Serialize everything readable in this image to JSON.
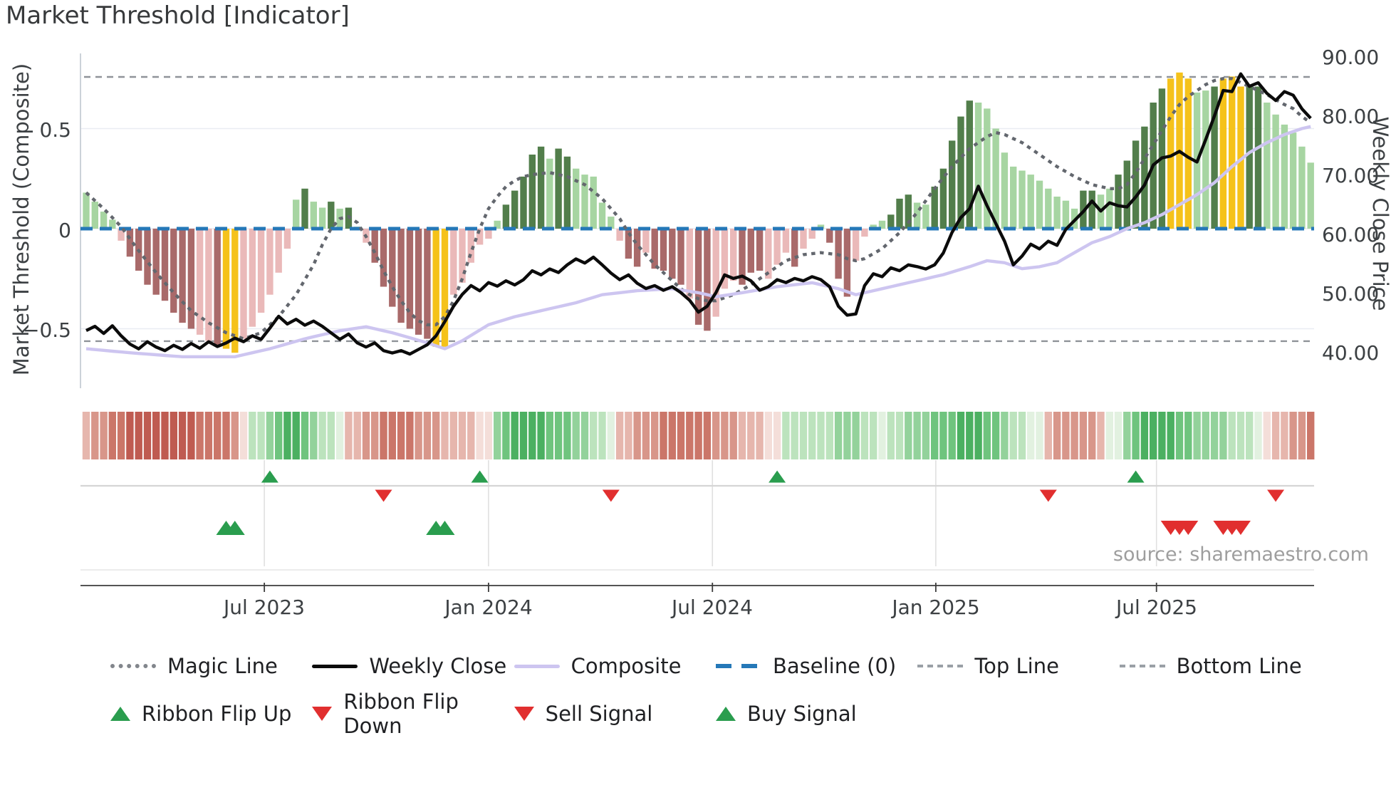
{
  "title": "Market Threshold [Indicator]",
  "source": "source: sharemaestro.com",
  "axes": {
    "left_label": "Market Threshold (Composite)",
    "right_label": "Weekly Close Price",
    "left_ticks": [
      "0.5",
      "0",
      "−0.5"
    ],
    "right_ticks": [
      "90.00",
      "80.00",
      "70.00",
      "60.00",
      "50.00",
      "40.00"
    ],
    "x_ticks": [
      "Jul 2023",
      "Jan 2024",
      "Jul 2024",
      "Jan 2025",
      "Jul 2025"
    ]
  },
  "colors": {
    "bar_light_green": "#a7d5a2",
    "bar_dark_green": "#527e4b",
    "bar_light_pink": "#eab9b9",
    "bar_mauve": "#a96a6a",
    "bar_gold": "#f5c21a",
    "baseline_blue": "#2578b8",
    "magic_gray": "#63676e",
    "composite_lavender": "#cdc5f0",
    "weekly_close_black": "#0b0b0b",
    "threshold_dash_gray": "#8f9399",
    "signal_green": "#2a9d4e",
    "signal_red": "#e12f2f",
    "ribbon_palette": {
      "r4": "#bf5b51",
      "r3": "#cb7669",
      "r2": "#d8968a",
      "r1": "#e6b6ad",
      "p0": "#f4ded9",
      "g0": "#e2f1e0",
      "g1": "#bce3bd",
      "g2": "#93d29b",
      "g3": "#6fc47e",
      "g4": "#4bb061"
    }
  },
  "chart_data": {
    "type": "combo",
    "x_unit": "week",
    "week_count": 141,
    "x_tick_weeks": [
      21.37,
      47.0,
      72.6,
      98.14,
      123.37
    ],
    "left_axis_range": [
      -0.8,
      0.875
    ],
    "right_axis_range": [
      33.7,
      90.4
    ],
    "grid_values_left": [
      0.5,
      0,
      -0.5
    ],
    "baseline": 0,
    "top_line": 0.758,
    "bottom_line": -0.562,
    "threshold_bars": [
      [
        0.18,
        "lg"
      ],
      [
        0.135,
        "lg"
      ],
      [
        0.085,
        "lg"
      ],
      [
        0.045,
        "lg"
      ],
      [
        -0.06,
        "lp"
      ],
      [
        -0.14,
        "dr"
      ],
      [
        -0.21,
        "dr"
      ],
      [
        -0.28,
        "dr"
      ],
      [
        -0.33,
        "dr"
      ],
      [
        -0.36,
        "dr"
      ],
      [
        -0.42,
        "dr"
      ],
      [
        -0.47,
        "dr"
      ],
      [
        -0.5,
        "dr"
      ],
      [
        -0.53,
        "lp"
      ],
      [
        -0.56,
        "lp"
      ],
      [
        -0.58,
        "dr"
      ],
      [
        -0.6,
        "gd"
      ],
      [
        -0.62,
        "gd"
      ],
      [
        -0.55,
        "lp"
      ],
      [
        -0.49,
        "lp"
      ],
      [
        -0.42,
        "lp"
      ],
      [
        -0.33,
        "lp"
      ],
      [
        -0.22,
        "lp"
      ],
      [
        -0.1,
        "lp"
      ],
      [
        0.145,
        "lg"
      ],
      [
        0.2,
        "dg"
      ],
      [
        0.135,
        "lg"
      ],
      [
        0.105,
        "lg"
      ],
      [
        0.135,
        "dg"
      ],
      [
        0.1,
        "lg"
      ],
      [
        0.105,
        "dg"
      ],
      [
        0.01,
        "lg"
      ],
      [
        -0.07,
        "lp"
      ],
      [
        -0.17,
        "dr"
      ],
      [
        -0.29,
        "dr"
      ],
      [
        -0.39,
        "dr"
      ],
      [
        -0.47,
        "dr"
      ],
      [
        -0.5,
        "dr"
      ],
      [
        -0.53,
        "dr"
      ],
      [
        -0.55,
        "dr"
      ],
      [
        -0.59,
        "gd"
      ],
      [
        -0.59,
        "gd"
      ],
      [
        -0.33,
        "lp"
      ],
      [
        -0.27,
        "lp"
      ],
      [
        -0.17,
        "lp"
      ],
      [
        -0.08,
        "lp"
      ],
      [
        -0.05,
        "lp"
      ],
      [
        0.04,
        "lg"
      ],
      [
        0.12,
        "dg"
      ],
      [
        0.19,
        "dg"
      ],
      [
        0.26,
        "dg"
      ],
      [
        0.37,
        "dg"
      ],
      [
        0.41,
        "dg"
      ],
      [
        0.35,
        "lg"
      ],
      [
        0.4,
        "dg"
      ],
      [
        0.36,
        "dg"
      ],
      [
        0.3,
        "lg"
      ],
      [
        0.27,
        "lg"
      ],
      [
        0.26,
        "lg"
      ],
      [
        0.13,
        "lg"
      ],
      [
        0.06,
        "lg"
      ],
      [
        -0.06,
        "lp"
      ],
      [
        -0.15,
        "dr"
      ],
      [
        -0.19,
        "dr"
      ],
      [
        -0.12,
        "lp"
      ],
      [
        -0.2,
        "dr"
      ],
      [
        -0.21,
        "dr"
      ],
      [
        -0.25,
        "dr"
      ],
      [
        -0.28,
        "dr"
      ],
      [
        -0.35,
        "lp"
      ],
      [
        -0.48,
        "dr"
      ],
      [
        -0.51,
        "dr"
      ],
      [
        -0.44,
        "lp"
      ],
      [
        -0.3,
        "lp"
      ],
      [
        -0.26,
        "lp"
      ],
      [
        -0.28,
        "dr"
      ],
      [
        -0.22,
        "dr"
      ],
      [
        -0.21,
        "dr"
      ],
      [
        -0.25,
        "lp"
      ],
      [
        -0.18,
        "lp"
      ],
      [
        -0.12,
        "lp"
      ],
      [
        -0.19,
        "dr"
      ],
      [
        -0.1,
        "lp"
      ],
      [
        -0.05,
        "lp"
      ],
      [
        0.02,
        "lg"
      ],
      [
        -0.07,
        "dr"
      ],
      [
        -0.25,
        "dr"
      ],
      [
        -0.34,
        "dr"
      ],
      [
        -0.16,
        "lp"
      ],
      [
        -0.04,
        "lp"
      ],
      [
        0.02,
        "lg"
      ],
      [
        0.04,
        "lg"
      ],
      [
        0.07,
        "dg"
      ],
      [
        0.15,
        "dg"
      ],
      [
        0.17,
        "dg"
      ],
      [
        0.13,
        "lg"
      ],
      [
        0.12,
        "lg"
      ],
      [
        0.21,
        "dg"
      ],
      [
        0.3,
        "dg"
      ],
      [
        0.44,
        "dg"
      ],
      [
        0.56,
        "dg"
      ],
      [
        0.64,
        "dg"
      ],
      [
        0.63,
        "lg"
      ],
      [
        0.6,
        "lg"
      ],
      [
        0.5,
        "lg"
      ],
      [
        0.38,
        "lg"
      ],
      [
        0.31,
        "lg"
      ],
      [
        0.29,
        "lg"
      ],
      [
        0.27,
        "lg"
      ],
      [
        0.24,
        "lg"
      ],
      [
        0.2,
        "lg"
      ],
      [
        0.16,
        "lg"
      ],
      [
        0.14,
        "lg"
      ],
      [
        0.1,
        "lg"
      ],
      [
        0.19,
        "dg"
      ],
      [
        0.19,
        "dg"
      ],
      [
        0.17,
        "lg"
      ],
      [
        0.2,
        "lg"
      ],
      [
        0.27,
        "dg"
      ],
      [
        0.34,
        "dg"
      ],
      [
        0.44,
        "dg"
      ],
      [
        0.51,
        "dg"
      ],
      [
        0.63,
        "dg"
      ],
      [
        0.7,
        "dg"
      ],
      [
        0.75,
        "gd"
      ],
      [
        0.78,
        "gd"
      ],
      [
        0.75,
        "gd"
      ],
      [
        0.68,
        "lg"
      ],
      [
        0.69,
        "lg"
      ],
      [
        0.71,
        "dg"
      ],
      [
        0.75,
        "gd"
      ],
      [
        0.76,
        "gd"
      ],
      [
        0.71,
        "gd"
      ],
      [
        0.72,
        "dg"
      ],
      [
        0.71,
        "dg"
      ],
      [
        0.63,
        "lg"
      ],
      [
        0.57,
        "lg"
      ],
      [
        0.52,
        "lg"
      ],
      [
        0.48,
        "lg"
      ],
      [
        0.41,
        "lg"
      ],
      [
        0.33,
        "lg"
      ]
    ],
    "weekly_close": [
      43.5,
      44.2,
      43.0,
      44.3,
      42.6,
      41.2,
      40.4,
      41.6,
      40.7,
      40.1,
      41.0,
      40.3,
      41.3,
      40.5,
      41.6,
      40.8,
      41.4,
      42.2,
      41.6,
      42.6,
      42.0,
      43.9,
      45.9,
      44.6,
      45.4,
      44.4,
      45.1,
      44.2,
      43.1,
      42.0,
      42.9,
      41.4,
      40.7,
      41.4,
      40.1,
      39.7,
      40.1,
      39.5,
      40.3,
      41.1,
      42.6,
      45.0,
      47.6,
      49.6,
      51.1,
      50.2,
      51.6,
      51.0,
      51.9,
      51.2,
      52.1,
      53.6,
      52.9,
      53.9,
      53.3,
      54.6,
      55.6,
      54.9,
      55.9,
      54.6,
      53.2,
      52.1,
      52.9,
      51.5,
      50.6,
      51.1,
      50.3,
      50.9,
      49.9,
      48.6,
      46.6,
      47.6,
      49.9,
      52.9,
      52.3,
      52.7,
      51.9,
      50.3,
      50.9,
      52.1,
      51.6,
      52.3,
      51.9,
      52.6,
      52.1,
      50.9,
      47.6,
      46.1,
      46.3,
      51.1,
      53.1,
      52.6,
      54.1,
      53.6,
      54.6,
      54.3,
      53.9,
      54.6,
      56.6,
      60.1,
      62.6,
      64.1,
      67.9,
      64.6,
      61.6,
      58.6,
      54.6,
      56.1,
      58.1,
      57.3,
      58.6,
      57.9,
      60.6,
      62.1,
      63.6,
      65.4,
      63.7,
      65.1,
      64.6,
      64.4,
      66.1,
      68.1,
      71.5,
      72.7,
      73.0,
      73.8,
      72.8,
      72.0,
      75.8,
      79.8,
      84.1,
      83.9,
      86.9,
      84.8,
      85.4,
      83.6,
      82.4,
      83.9,
      83.3,
      81.0,
      79.4
    ],
    "magic_line": [
      [
        1,
        0.18
      ],
      [
        3,
        0.1
      ],
      [
        5,
        0.01
      ],
      [
        7,
        -0.11
      ],
      [
        9,
        -0.22
      ],
      [
        11,
        -0.32
      ],
      [
        13,
        -0.41
      ],
      [
        15,
        -0.47
      ],
      [
        17,
        -0.52
      ],
      [
        19,
        -0.55
      ],
      [
        21,
        -0.52
      ],
      [
        23,
        -0.44
      ],
      [
        25,
        -0.33
      ],
      [
        27,
        -0.18
      ],
      [
        28,
        -0.08
      ],
      [
        29,
        0.0
      ],
      [
        30,
        0.05
      ],
      [
        31,
        0.06
      ],
      [
        32,
        0.03
      ],
      [
        33,
        -0.04
      ],
      [
        34,
        -0.12
      ],
      [
        35,
        -0.21
      ],
      [
        36,
        -0.29
      ],
      [
        37,
        -0.36
      ],
      [
        38,
        -0.42
      ],
      [
        39,
        -0.46
      ],
      [
        40,
        -0.48
      ],
      [
        41,
        -0.48
      ],
      [
        42,
        -0.44
      ],
      [
        43,
        -0.36
      ],
      [
        44,
        -0.25
      ],
      [
        45,
        -0.12
      ],
      [
        46,
        0.0
      ],
      [
        47,
        0.1
      ],
      [
        48,
        0.16
      ],
      [
        49,
        0.21
      ],
      [
        50,
        0.24
      ],
      [
        51,
        0.26
      ],
      [
        52,
        0.27
      ],
      [
        54,
        0.28
      ],
      [
        56,
        0.26
      ],
      [
        58,
        0.22
      ],
      [
        60,
        0.15
      ],
      [
        62,
        0.05
      ],
      [
        63,
        -0.02
      ],
      [
        64,
        -0.08
      ],
      [
        65,
        -0.13
      ],
      [
        66,
        -0.18
      ],
      [
        67,
        -0.22
      ],
      [
        68,
        -0.26
      ],
      [
        69,
        -0.3
      ],
      [
        70,
        -0.33
      ],
      [
        71,
        -0.35
      ],
      [
        72,
        -0.36
      ],
      [
        73,
        -0.36
      ],
      [
        75,
        -0.33
      ],
      [
        77,
        -0.28
      ],
      [
        79,
        -0.22
      ],
      [
        81,
        -0.16
      ],
      [
        83,
        -0.13
      ],
      [
        85,
        -0.12
      ],
      [
        87,
        -0.13
      ],
      [
        88,
        -0.15
      ],
      [
        89,
        -0.16
      ],
      [
        90,
        -0.15
      ],
      [
        92,
        -0.1
      ],
      [
        94,
        -0.02
      ],
      [
        96,
        0.08
      ],
      [
        98,
        0.2
      ],
      [
        100,
        0.31
      ],
      [
        102,
        0.4
      ],
      [
        104,
        0.46
      ],
      [
        105,
        0.48
      ],
      [
        106,
        0.47
      ],
      [
        108,
        0.43
      ],
      [
        110,
        0.37
      ],
      [
        112,
        0.31
      ],
      [
        114,
        0.26
      ],
      [
        116,
        0.22
      ],
      [
        118,
        0.2
      ],
      [
        119,
        0.2
      ],
      [
        120,
        0.22
      ],
      [
        121,
        0.28
      ],
      [
        122,
        0.35
      ],
      [
        123,
        0.42
      ],
      [
        124,
        0.49
      ],
      [
        125,
        0.56
      ],
      [
        126,
        0.62
      ],
      [
        127,
        0.66
      ],
      [
        128,
        0.69
      ],
      [
        129,
        0.72
      ],
      [
        130,
        0.74
      ],
      [
        131,
        0.75
      ],
      [
        132,
        0.75
      ],
      [
        133,
        0.73
      ],
      [
        134,
        0.71
      ],
      [
        136,
        0.67
      ],
      [
        138,
        0.62
      ],
      [
        139,
        0.6
      ],
      [
        140,
        0.56
      ],
      [
        141,
        0.53
      ]
    ],
    "composite": [
      [
        1,
        -0.6
      ],
      [
        6,
        -0.62
      ],
      [
        12,
        -0.64
      ],
      [
        18,
        -0.64
      ],
      [
        22,
        -0.6
      ],
      [
        26,
        -0.55
      ],
      [
        30,
        -0.51
      ],
      [
        33,
        -0.49
      ],
      [
        36,
        -0.52
      ],
      [
        40,
        -0.57
      ],
      [
        42,
        -0.6
      ],
      [
        44,
        -0.56
      ],
      [
        47,
        -0.48
      ],
      [
        50,
        -0.44
      ],
      [
        53,
        -0.41
      ],
      [
        57,
        -0.37
      ],
      [
        60,
        -0.33
      ],
      [
        64,
        -0.31
      ],
      [
        68,
        -0.3
      ],
      [
        71,
        -0.32
      ],
      [
        73,
        -0.34
      ],
      [
        76,
        -0.32
      ],
      [
        80,
        -0.29
      ],
      [
        84,
        -0.27
      ],
      [
        87,
        -0.3
      ],
      [
        89,
        -0.33
      ],
      [
        92,
        -0.3
      ],
      [
        96,
        -0.26
      ],
      [
        99,
        -0.23
      ],
      [
        102,
        -0.19
      ],
      [
        104,
        -0.16
      ],
      [
        106,
        -0.17
      ],
      [
        108,
        -0.2
      ],
      [
        110,
        -0.19
      ],
      [
        112,
        -0.17
      ],
      [
        114,
        -0.12
      ],
      [
        116,
        -0.07
      ],
      [
        118,
        -0.04
      ],
      [
        120,
        0.0
      ],
      [
        122,
        0.03
      ],
      [
        124,
        0.07
      ],
      [
        126,
        0.12
      ],
      [
        128,
        0.17
      ],
      [
        130,
        0.23
      ],
      [
        132,
        0.31
      ],
      [
        134,
        0.38
      ],
      [
        136,
        0.43
      ],
      [
        138,
        0.47
      ],
      [
        140,
        0.5
      ],
      [
        141,
        0.51
      ]
    ],
    "ribbon": [
      "r1",
      "r2",
      "r2",
      "r3",
      "r3",
      "r4",
      "r4",
      "r4",
      "r4",
      "r4",
      "r4",
      "r4",
      "r4",
      "r3",
      "r3",
      "r3",
      "r3",
      "r2",
      "p0",
      "g1",
      "g1",
      "g2",
      "g3",
      "g4",
      "g4",
      "g3",
      "g2",
      "g1",
      "g1",
      "g0",
      "r1",
      "r1",
      "r2",
      "r2",
      "r3",
      "r3",
      "r3",
      "r3",
      "r2",
      "r2",
      "r2",
      "r1",
      "r1",
      "r1",
      "r1",
      "p0",
      "p0",
      "g2",
      "g3",
      "g4",
      "g4",
      "g4",
      "g4",
      "g3",
      "g3",
      "g3",
      "g2",
      "g2",
      "g1",
      "g1",
      "g0",
      "r1",
      "r1",
      "r2",
      "r2",
      "r2",
      "r3",
      "r3",
      "r3",
      "r3",
      "r3",
      "r3",
      "r2",
      "r2",
      "r2",
      "r1",
      "r1",
      "r1",
      "p0",
      "p0",
      "g1",
      "g1",
      "g1",
      "g1",
      "g1",
      "g1",
      "g2",
      "g2",
      "g2",
      "g1",
      "g1",
      "g0",
      "g1",
      "g1",
      "g2",
      "g2",
      "g2",
      "g3",
      "g3",
      "g3",
      "g4",
      "g4",
      "g4",
      "g3",
      "g3",
      "g2",
      "g1",
      "g1",
      "g0",
      "g0",
      "r1",
      "r2",
      "r2",
      "r2",
      "r2",
      "r2",
      "r1",
      "g0",
      "g0",
      "g2",
      "g3",
      "g4",
      "g4",
      "g4",
      "g4",
      "g3",
      "g3",
      "g2",
      "g2",
      "g2",
      "g2",
      "g1",
      "g1",
      "g1",
      "g0",
      "p0",
      "r1",
      "r1",
      "r2",
      "r2",
      "r3"
    ],
    "signals": {
      "ribbon_flip_up_weeks": [
        22,
        46,
        80,
        121
      ],
      "ribbon_flip_down_weeks": [
        35,
        61,
        111,
        137
      ],
      "buy_weeks": [
        17,
        18,
        41,
        42
      ],
      "sell_weeks": [
        125,
        126,
        127,
        131,
        132,
        133
      ]
    }
  },
  "legend": {
    "row1": [
      {
        "label": "Magic Line"
      },
      {
        "label": "Weekly Close"
      },
      {
        "label": "Composite"
      },
      {
        "label": "Baseline (0)"
      },
      {
        "label": "Top Line"
      },
      {
        "label": "Bottom Line"
      }
    ],
    "row2": [
      {
        "label": "Ribbon Flip Up"
      },
      {
        "label": "Ribbon Flip Down"
      },
      {
        "label": "Sell Signal"
      },
      {
        "label": "Buy Signal"
      }
    ]
  }
}
